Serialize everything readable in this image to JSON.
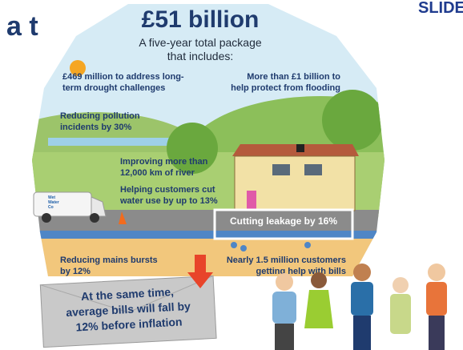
{
  "slide": {
    "title_fragment": "a t",
    "corner_label": "SLIDE"
  },
  "infographic": {
    "headline": "£51 billion",
    "subtitle": [
      "A five-year total package",
      "that includes:"
    ],
    "items": {
      "drought": [
        "£469 million to address long-",
        "term drought challenges"
      ],
      "flooding": [
        "More than £1 billion to",
        "help protect from flooding"
      ],
      "pollution": [
        "Reducing pollution",
        "incidents by 30%"
      ],
      "river": [
        "Improving more than",
        "12,000 km of river"
      ],
      "water_use": [
        "Helping customers cut",
        "water use by up to 13%"
      ],
      "leakage": [
        "Cutting leakage by 16%"
      ],
      "bursts": [
        "Reducing mains bursts",
        "by 12%"
      ],
      "bills": [
        "Nearly 1.5 million customers",
        "getting help with bills"
      ]
    },
    "van_label": [
      "Wet",
      "Water",
      "Co"
    ],
    "callout": [
      "At the same time,",
      "average bills will fall by",
      "12% before inflation"
    ]
  }
}
